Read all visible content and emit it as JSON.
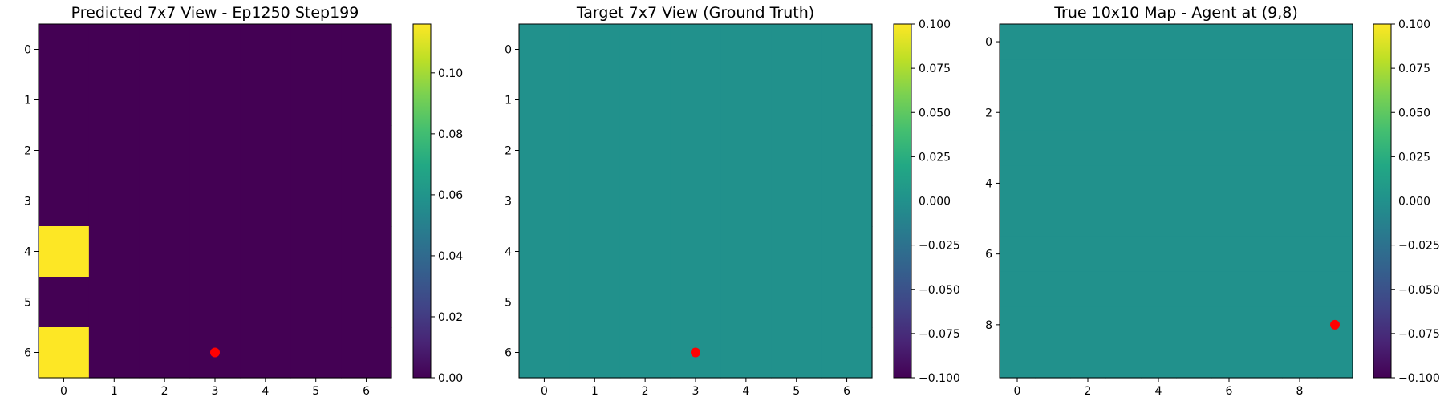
{
  "colormap": "viridis",
  "marker_color": "#ff0000",
  "chart_data": [
    {
      "type": "heatmap",
      "title": "Predicted 7x7 View - Ep1250 Step199",
      "rows": 7,
      "cols": 7,
      "x_ticks": [
        0,
        1,
        2,
        3,
        4,
        5,
        6
      ],
      "y_ticks": [
        0,
        1,
        2,
        3,
        4,
        5,
        6
      ],
      "vmin": 0.0,
      "vmax": 0.116,
      "colorbar_ticks": [
        0.0,
        0.02,
        0.04,
        0.06,
        0.08,
        0.1
      ],
      "colorbar_labels": [
        "0.00",
        "0.02",
        "0.04",
        "0.06",
        "0.08",
        "0.10"
      ],
      "values": [
        [
          0,
          0,
          0,
          0,
          0,
          0,
          0
        ],
        [
          0,
          0,
          0,
          0,
          0,
          0,
          0
        ],
        [
          0,
          0,
          0,
          0,
          0,
          0,
          0
        ],
        [
          0,
          0,
          0,
          0,
          0,
          0,
          0
        ],
        [
          0.116,
          0,
          0,
          0,
          0,
          0,
          0
        ],
        [
          0,
          0,
          0,
          0,
          0,
          0,
          0
        ],
        [
          0.116,
          0,
          0,
          0,
          0,
          0,
          0
        ]
      ],
      "marker": {
        "x": 3,
        "y": 6
      }
    },
    {
      "type": "heatmap",
      "title": "Target 7x7 View (Ground Truth)",
      "rows": 7,
      "cols": 7,
      "x_ticks": [
        0,
        1,
        2,
        3,
        4,
        5,
        6
      ],
      "y_ticks": [
        0,
        1,
        2,
        3,
        4,
        5,
        6
      ],
      "vmin": -0.1,
      "vmax": 0.1,
      "colorbar_ticks": [
        -0.1,
        -0.075,
        -0.05,
        -0.025,
        0.0,
        0.025,
        0.05,
        0.075,
        0.1
      ],
      "colorbar_labels": [
        "−0.100",
        "−0.075",
        "−0.050",
        "−0.025",
        "0.000",
        "0.025",
        "0.050",
        "0.075",
        "0.100"
      ],
      "uniform_value": 0.0,
      "marker": {
        "x": 3,
        "y": 6
      }
    },
    {
      "type": "heatmap",
      "title": "True 10x10 Map - Agent at (9,8)",
      "rows": 10,
      "cols": 10,
      "x_ticks": [
        0,
        2,
        4,
        6,
        8
      ],
      "y_ticks": [
        0,
        2,
        4,
        6,
        8
      ],
      "vmin": -0.1,
      "vmax": 0.1,
      "colorbar_ticks": [
        -0.1,
        -0.075,
        -0.05,
        -0.025,
        0.0,
        0.025,
        0.05,
        0.075,
        0.1
      ],
      "colorbar_labels": [
        "−0.100",
        "−0.075",
        "−0.050",
        "−0.025",
        "0.000",
        "0.025",
        "0.050",
        "0.075",
        "0.100"
      ],
      "uniform_value": 0.0,
      "marker": {
        "x": 9,
        "y": 8
      }
    }
  ]
}
